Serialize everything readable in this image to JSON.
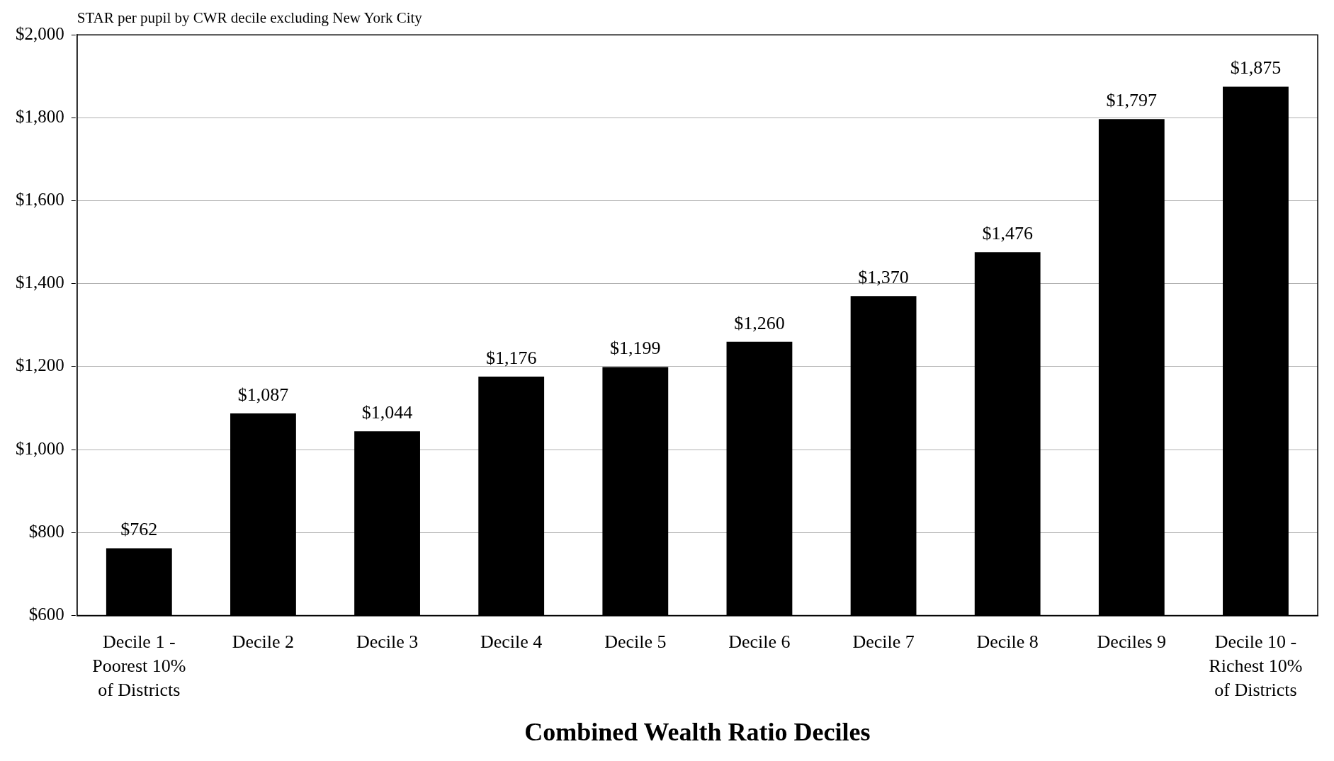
{
  "chart_data": {
    "type": "bar",
    "title": "STAR per pupil by CWR decile excluding New York City",
    "xlabel": "Combined Wealth Ratio Deciles",
    "categories": [
      "Decile 1 - Poorest 10% of Districts",
      "Decile 2",
      "Decile 3",
      "Decile 4",
      "Decile 5",
      "Decile 6",
      "Decile 7",
      "Decile 8",
      "Deciles 9",
      "Decile 10 - Richest 10% of Districts"
    ],
    "values": [
      762,
      1087,
      1044,
      1176,
      1199,
      1260,
      1370,
      1476,
      1797,
      1875
    ],
    "value_labels": [
      "$762",
      "$1,087",
      "$1,044",
      "$1,176",
      "$1,199",
      "$1,260",
      "$1,370",
      "$1,476",
      "$1,797",
      "$1,875"
    ],
    "color": "#000000",
    "ylim": [
      600,
      2000
    ],
    "yticks": [
      {
        "value": 600,
        "label": "$600"
      },
      {
        "value": 800,
        "label": "$800"
      },
      {
        "value": 1000,
        "label": "$1,000"
      },
      {
        "value": 1200,
        "label": "$1,200"
      },
      {
        "value": 1400,
        "label": "$1,400"
      },
      {
        "value": 1600,
        "label": "$1,600"
      },
      {
        "value": 1800,
        "label": "$1,800"
      },
      {
        "value": 2000,
        "label": "$2,000"
      }
    ],
    "grid": "y",
    "legend": false
  }
}
